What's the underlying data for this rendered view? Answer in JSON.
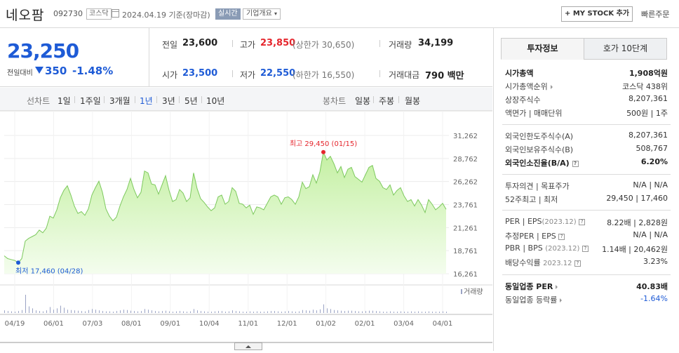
{
  "header": {
    "stock_name": "네오팜",
    "stock_code": "092730",
    "market": "코스닥",
    "date_label": "2024.04.19 기준(장마감)",
    "realtime": "실시간",
    "corp_overview": "기업개요",
    "mystock_btn": "+ MY STOCK 추가",
    "quick_order": "빠른주문"
  },
  "price": {
    "current": "23,250",
    "change_label": "전일대비",
    "change": "350",
    "change_pct": "-1.48%",
    "prev_close_label": "전일",
    "prev_close": "23,600",
    "open_label": "시가",
    "open": "23,500",
    "high_label": "고가",
    "high": "23,850",
    "upper_limit": "(상한가 30,650)",
    "low_label": "저가",
    "low": "22,550",
    "lower_limit": "(하한가 16,550)",
    "volume_label": "거래량",
    "volume": "34,199",
    "amount_label": "거래대금",
    "amount": "790 백만"
  },
  "chart_tabs": {
    "line_label": "선차트",
    "line_periods": [
      "1일",
      "1주일",
      "3개월",
      "1년",
      "3년",
      "5년",
      "10년"
    ],
    "active": "1년",
    "candle_label": "봉차트",
    "candle_periods": [
      "일봉",
      "주봉",
      "월봉"
    ]
  },
  "chart_data": {
    "type": "area",
    "x_ticks": [
      "04/19",
      "06/01",
      "07/03",
      "08/01",
      "09/01",
      "10/04",
      "11/01",
      "12/01",
      "01/02",
      "02/01",
      "03/04",
      "04/01"
    ],
    "y_ticks": [
      31262,
      28762,
      26262,
      23761,
      21261,
      18761,
      16261
    ],
    "ylim": [
      16261,
      31262
    ],
    "values": [
      18200,
      17900,
      17800,
      17700,
      17460,
      17900,
      19800,
      20100,
      20300,
      20500,
      21000,
      20700,
      21200,
      22500,
      22300,
      23200,
      24500,
      25300,
      25800,
      24800,
      23600,
      22800,
      23000,
      22600,
      23300,
      24800,
      25600,
      26300,
      25100,
      23300,
      22500,
      22000,
      22400,
      23600,
      24600,
      25400,
      26600,
      25400,
      24500,
      25100,
      27400,
      27200,
      26000,
      25900,
      24900,
      25900,
      26900,
      25300,
      24100,
      24300,
      25400,
      25000,
      24100,
      24500,
      27200,
      25500,
      24400,
      24000,
      23500,
      23100,
      23400,
      24600,
      24800,
      23800,
      24100,
      25600,
      25200,
      23900,
      23800,
      23400,
      23700,
      22700,
      23500,
      23400,
      23200,
      23900,
      24600,
      24800,
      24600,
      23800,
      24500,
      24600,
      24300,
      23800,
      24600,
      26200,
      25500,
      25700,
      27000,
      26100,
      27300,
      29450,
      28600,
      29000,
      28200,
      27200,
      27900,
      26700,
      27600,
      27800,
      26800,
      26500,
      26200,
      27000,
      27800,
      28000,
      26600,
      26300,
      25600,
      25400,
      25900,
      24800,
      25300,
      25600,
      24700,
      24100,
      24300,
      23600,
      24300,
      23700,
      22900,
      24300,
      23800,
      23200,
      23500,
      23900,
      23250
    ],
    "volumes": [
      8,
      6,
      5,
      4,
      6,
      9,
      55,
      20,
      14,
      8,
      6,
      5,
      8,
      18,
      10,
      14,
      22,
      16,
      10,
      9,
      8,
      7,
      6,
      5,
      9,
      12,
      10,
      8,
      6,
      5,
      5,
      4,
      6,
      8,
      10,
      9,
      7,
      6,
      5,
      6,
      12,
      10,
      8,
      6,
      5,
      6,
      7,
      5,
      4,
      5,
      6,
      5,
      4,
      5,
      12,
      8,
      6,
      5,
      4,
      4,
      5,
      6,
      6,
      4,
      5,
      8,
      6,
      5,
      4,
      4,
      5,
      4,
      5,
      4,
      4,
      5,
      6,
      6,
      5,
      4,
      5,
      6,
      5,
      4,
      5,
      9,
      8,
      7,
      10,
      8,
      11,
      26,
      14,
      12,
      9,
      8,
      7,
      6,
      7,
      7,
      6,
      5,
      5,
      6,
      7,
      7,
      6,
      5,
      4,
      4,
      5,
      4,
      4,
      5,
      4,
      4,
      5,
      4,
      5,
      4,
      4,
      5,
      4,
      4,
      4,
      5,
      4
    ],
    "high_annotation": "최고 29,450 (01/15)",
    "low_annotation": "최저 17,460 (04/28)",
    "volume_legend": "거래량"
  },
  "side": {
    "tab_invest": "투자정보",
    "tab_orderbook": "호가 10단계",
    "rows1": [
      {
        "k": "시가총액",
        "v": "1,908억원",
        "bold": true
      },
      {
        "k": "시가총액순위",
        "v": "코스닥 438위",
        "arrow": true
      },
      {
        "k": "상장주식수",
        "v": "8,207,361"
      },
      {
        "k": "액면가 | 매매단위",
        "v": "500원 | 1주"
      }
    ],
    "rows2": [
      {
        "k": "외국인한도주식수(A)",
        "v": "8,207,361"
      },
      {
        "k": "외국인보유주식수(B)",
        "v": "508,767"
      },
      {
        "k": "외국인소진율(B/A)",
        "v": "6.20%",
        "bold": true,
        "q": true
      }
    ],
    "rows3": [
      {
        "k": "투자의견 | 목표주가",
        "v": "N/A | N/A"
      },
      {
        "k": "52주최고 | 최저",
        "v": "29,450 | 17,460"
      }
    ],
    "per_k": "PER",
    "eps_k": "EPS",
    "year_2023": "(2023.12)",
    "per_v": "8.22배 | 2,828원",
    "est_per_k": "추정PER",
    "est_per_v": "N/A | N/A",
    "pbr_k": "PBR",
    "bps_k": "BPS",
    "pbr_v": "1.14배 | 20,462원",
    "dividend_k": "배당수익률",
    "dividend_year": "2023.12",
    "dividend_v": "3.23%",
    "industry_per_k": "동일업종 PER",
    "industry_per_v": "40.83배",
    "industry_rate_k": "동일업종 등락률",
    "industry_rate_v": "-1.64%"
  },
  "colors": {
    "up": "#e5262d",
    "down": "#1e5bd6",
    "area_fill_top": "#c6f0a8",
    "area_line": "#7dc95e"
  }
}
